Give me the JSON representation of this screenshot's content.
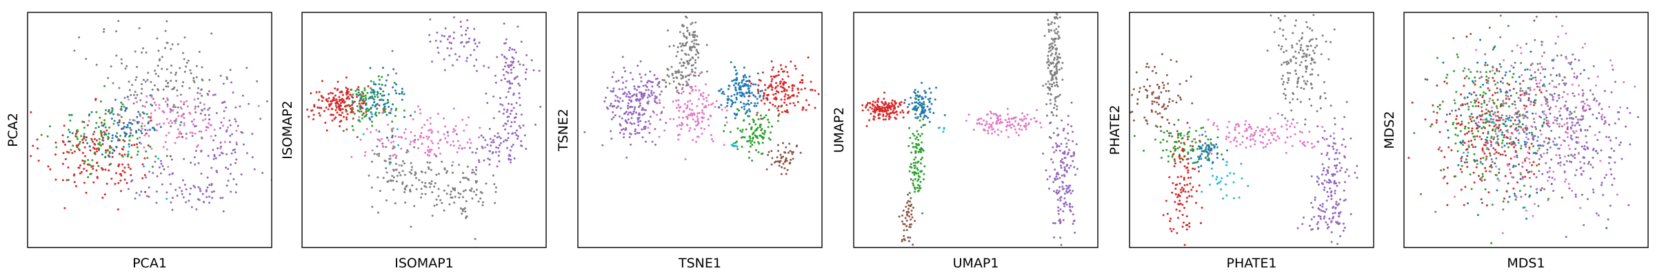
{
  "colors": {
    "red": "#d62728",
    "green": "#2ca02c",
    "blue": "#1f77b4",
    "gray": "#7f7f7f",
    "pink": "#e377c2",
    "purple": "#9467bd",
    "brown": "#8c564b",
    "cyan": "#17becf"
  },
  "chart_data": [
    {
      "type": "scatter",
      "title": "",
      "xlabel": "PCA1",
      "ylabel": "PCA2",
      "xlim": [
        0,
        100
      ],
      "ylim": [
        0,
        100
      ],
      "ticks": "none",
      "grid": false,
      "legend": "none",
      "series": [
        {
          "color": "#d62728",
          "clusters": [
            {
              "cx": 28,
              "cy": 40,
              "sx": 11,
              "sy": 9,
              "n": 170
            }
          ]
        },
        {
          "color": "#2ca02c",
          "clusters": [
            {
              "cx": 33,
              "cy": 47,
              "sx": 11,
              "sy": 8,
              "n": 110
            }
          ]
        },
        {
          "color": "#1f77b4",
          "clusters": [
            {
              "cx": 40,
              "cy": 51,
              "sx": 9,
              "sy": 7,
              "n": 80
            }
          ]
        },
        {
          "color": "#7f7f7f",
          "clusters": [
            {
              "cx": 57,
              "cy": 72,
              "sx": 14,
              "sy": 11,
              "n": 160
            }
          ]
        },
        {
          "color": "#e377c2",
          "clusters": [
            {
              "cx": 60,
              "cy": 54,
              "sx": 12,
              "sy": 6,
              "n": 110
            }
          ]
        },
        {
          "color": "#9467bd",
          "clusters": [
            {
              "cx": 80,
              "cy": 46,
              "sx": 7,
              "sy": 12,
              "n": 90
            },
            {
              "cx": 66,
              "cy": 27,
              "sx": 12,
              "sy": 6,
              "n": 80
            }
          ]
        },
        {
          "color": "#17becf",
          "clusters": [
            {
              "cx": 45,
              "cy": 38,
              "sx": 10,
              "sy": 10,
              "n": 6
            }
          ]
        },
        {
          "color": "#8c564b",
          "clusters": [
            {
              "cx": 40,
              "cy": 38,
              "sx": 10,
              "sy": 8,
              "n": 5
            }
          ]
        }
      ]
    },
    {
      "type": "scatter",
      "title": "",
      "xlabel": "ISOMAP1",
      "ylabel": "ISOMAP2",
      "xlim": [
        0,
        100
      ],
      "ylim": [
        0,
        100
      ],
      "ticks": "none",
      "grid": false,
      "legend": "none",
      "series": [
        {
          "color": "#d62728",
          "clusters": [
            {
              "cx": 16,
              "cy": 61,
              "sx": 6,
              "sy": 4,
              "n": 170
            }
          ]
        },
        {
          "color": "#2ca02c",
          "clusters": [
            {
              "cx": 28,
              "cy": 61,
              "sx": 5,
              "sy": 5,
              "n": 90
            }
          ]
        },
        {
          "color": "#1f77b4",
          "clusters": [
            {
              "cx": 32,
              "cy": 63,
              "sx": 5,
              "sy": 6,
              "n": 70
            }
          ]
        },
        {
          "color": "#e377c2",
          "clusters": [
            {
              "cx": 50,
              "cy": 47,
              "sx": 12,
              "sy": 5,
              "n": 120
            }
          ]
        },
        {
          "color": "#7f7f7f",
          "clusters": [
            {
              "cx": 50,
              "cy": 27,
              "sx": 11,
              "sy": 6,
              "n": 90
            },
            {
              "cx": 67,
              "cy": 22,
              "sx": 7,
              "sy": 6,
              "n": 60
            },
            {
              "cx": 37,
              "cy": 36,
              "sx": 6,
              "sy": 5,
              "n": 40
            }
          ]
        },
        {
          "color": "#9467bd",
          "clusters": [
            {
              "cx": 66,
              "cy": 88,
              "sx": 7,
              "sy": 5,
              "n": 60
            },
            {
              "cx": 85,
              "cy": 72,
              "sx": 4,
              "sy": 8,
              "n": 80
            },
            {
              "cx": 85,
              "cy": 50,
              "sx": 4,
              "sy": 7,
              "n": 60
            },
            {
              "cx": 76,
              "cy": 41,
              "sx": 6,
              "sy": 5,
              "n": 40
            }
          ]
        },
        {
          "color": "#17becf",
          "clusters": [
            {
              "cx": 35,
              "cy": 58,
              "sx": 12,
              "sy": 10,
              "n": 8
            }
          ]
        },
        {
          "color": "#8c564b",
          "clusters": [
            {
              "cx": 28,
              "cy": 55,
              "sx": 10,
              "sy": 8,
              "n": 5
            }
          ]
        }
      ]
    },
    {
      "type": "scatter",
      "title": "",
      "xlabel": "TSNE1",
      "ylabel": "TSNE2",
      "xlim": [
        0,
        100
      ],
      "ylim": [
        0,
        100
      ],
      "ticks": "none",
      "grid": false,
      "legend": "none",
      "series": [
        {
          "color": "#9467bd",
          "clusters": [
            {
              "cx": 22,
              "cy": 58,
              "sx": 6,
              "sy": 9,
              "n": 180
            },
            {
              "cx": 29,
              "cy": 68,
              "sx": 4,
              "sy": 4,
              "n": 40
            }
          ]
        },
        {
          "color": "#7f7f7f",
          "clusters": [
            {
              "cx": 45,
              "cy": 83,
              "sx": 3,
              "sy": 7,
              "n": 110
            },
            {
              "cx": 40,
              "cy": 72,
              "sx": 4,
              "sy": 4,
              "n": 40
            }
          ]
        },
        {
          "color": "#e377c2",
          "clusters": [
            {
              "cx": 47,
              "cy": 57,
              "sx": 6,
              "sy": 6,
              "n": 130
            }
          ]
        },
        {
          "color": "#1f77b4",
          "clusters": [
            {
              "cx": 68,
              "cy": 66,
              "sx": 4,
              "sy": 5,
              "n": 140
            }
          ]
        },
        {
          "color": "#d62728",
          "clusters": [
            {
              "cx": 83,
              "cy": 67,
              "sx": 6,
              "sy": 5,
              "n": 150
            }
          ]
        },
        {
          "color": "#2ca02c",
          "clusters": [
            {
              "cx": 73,
              "cy": 49,
              "sx": 4,
              "sy": 5,
              "n": 100
            }
          ]
        },
        {
          "color": "#8c564b",
          "clusters": [
            {
              "cx": 84,
              "cy": 38,
              "sx": 3,
              "sy": 3,
              "n": 50
            }
          ]
        },
        {
          "color": "#17becf",
          "clusters": [
            {
              "cx": 64,
              "cy": 44,
              "sx": 1,
              "sy": 1,
              "n": 6
            }
          ]
        }
      ]
    },
    {
      "type": "scatter",
      "title": "",
      "xlabel": "UMAP1",
      "ylabel": "UMAP2",
      "xlim": [
        0,
        100
      ],
      "ylim": [
        0,
        100
      ],
      "ticks": "none",
      "grid": false,
      "legend": "none",
      "series": [
        {
          "color": "#d62728",
          "clusters": [
            {
              "cx": 12,
              "cy": 59,
              "sx": 4,
              "sy": 2.5,
              "n": 140
            }
          ]
        },
        {
          "color": "#1f77b4",
          "clusters": [
            {
              "cx": 28,
              "cy": 61,
              "sx": 2.5,
              "sy": 3.5,
              "n": 90
            }
          ]
        },
        {
          "color": "#2ca02c",
          "clusters": [
            {
              "cx": 26,
              "cy": 38,
              "sx": 1.5,
              "sy": 10,
              "n": 100
            }
          ]
        },
        {
          "color": "#8c564b",
          "clusters": [
            {
              "cx": 22,
              "cy": 11,
              "sx": 1.2,
              "sy": 6,
              "n": 50
            }
          ]
        },
        {
          "color": "#e377c2",
          "clusters": [
            {
              "cx": 61,
              "cy": 53,
              "sx": 7,
              "sy": 2.5,
              "n": 110
            }
          ]
        },
        {
          "color": "#7f7f7f",
          "clusters": [
            {
              "cx": 82,
              "cy": 80,
              "sx": 1.5,
              "sy": 12,
              "n": 160
            }
          ]
        },
        {
          "color": "#9467bd",
          "clusters": [
            {
              "cx": 86,
              "cy": 30,
              "sx": 3,
              "sy": 12,
              "n": 150
            }
          ]
        },
        {
          "color": "#17becf",
          "clusters": [
            {
              "cx": 37,
              "cy": 50,
              "sx": 1,
              "sy": 1,
              "n": 5
            }
          ]
        }
      ]
    },
    {
      "type": "scatter",
      "title": "",
      "xlabel": "PHATE1",
      "ylabel": "PHATE2",
      "xlim": [
        0,
        100
      ],
      "ylim": [
        0,
        100
      ],
      "ticks": "none",
      "grid": false,
      "legend": "none",
      "series": [
        {
          "color": "#8c564b",
          "clusters": [
            {
              "cx": 12,
              "cy": 64,
              "sx": 6,
              "sy": 7,
              "n": 90
            }
          ]
        },
        {
          "color": "#2ca02c",
          "clusters": [
            {
              "cx": 22,
              "cy": 44,
              "sx": 7,
              "sy": 4,
              "n": 90
            }
          ]
        },
        {
          "color": "#1f77b4",
          "clusters": [
            {
              "cx": 32,
              "cy": 41,
              "sx": 3,
              "sy": 2.5,
              "n": 50
            }
          ]
        },
        {
          "color": "#d62728",
          "clusters": [
            {
              "cx": 22,
              "cy": 27,
              "sx": 3,
              "sy": 11,
              "n": 100
            }
          ]
        },
        {
          "color": "#e377c2",
          "clusters": [
            {
              "cx": 55,
              "cy": 48,
              "sx": 14,
              "sy": 3,
              "n": 120
            }
          ]
        },
        {
          "color": "#7f7f7f",
          "clusters": [
            {
              "cx": 70,
              "cy": 80,
              "sx": 6,
              "sy": 12,
              "n": 160
            }
          ]
        },
        {
          "color": "#9467bd",
          "clusters": [
            {
              "cx": 83,
              "cy": 30,
              "sx": 4,
              "sy": 12,
              "n": 130
            },
            {
              "cx": 80,
              "cy": 12,
              "sx": 5,
              "sy": 3,
              "n": 40
            }
          ]
        },
        {
          "color": "#17becf",
          "clusters": [
            {
              "cx": 40,
              "cy": 26,
              "sx": 5,
              "sy": 4,
              "n": 25
            }
          ]
        }
      ]
    },
    {
      "type": "scatter",
      "title": "",
      "xlabel": "MDS1",
      "ylabel": "MDS2",
      "xlim": [
        0,
        100
      ],
      "ylim": [
        0,
        100
      ],
      "ticks": "none",
      "grid": false,
      "legend": "none",
      "series": [
        {
          "color": "#d62728",
          "clusters": [
            {
              "cx": 33,
              "cy": 49,
              "sx": 11,
              "sy": 13,
              "n": 200
            }
          ]
        },
        {
          "color": "#2ca02c",
          "clusters": [
            {
              "cx": 37,
              "cy": 52,
              "sx": 13,
              "sy": 17,
              "n": 170
            }
          ]
        },
        {
          "color": "#1f77b4",
          "clusters": [
            {
              "cx": 42,
              "cy": 53,
              "sx": 13,
              "sy": 17,
              "n": 130
            }
          ]
        },
        {
          "color": "#7f7f7f",
          "clusters": [
            {
              "cx": 52,
              "cy": 58,
              "sx": 15,
              "sy": 18,
              "n": 180
            }
          ]
        },
        {
          "color": "#e377c2",
          "clusters": [
            {
              "cx": 58,
              "cy": 52,
              "sx": 14,
              "sy": 18,
              "n": 170
            }
          ]
        },
        {
          "color": "#9467bd",
          "clusters": [
            {
              "cx": 70,
              "cy": 49,
              "sx": 11,
              "sy": 15,
              "n": 220
            }
          ]
        },
        {
          "color": "#8c564b",
          "clusters": [
            {
              "cx": 38,
              "cy": 50,
              "sx": 12,
              "sy": 15,
              "n": 50
            }
          ]
        },
        {
          "color": "#17becf",
          "clusters": [
            {
              "cx": 40,
              "cy": 50,
              "sx": 12,
              "sy": 15,
              "n": 20
            }
          ]
        }
      ]
    }
  ]
}
